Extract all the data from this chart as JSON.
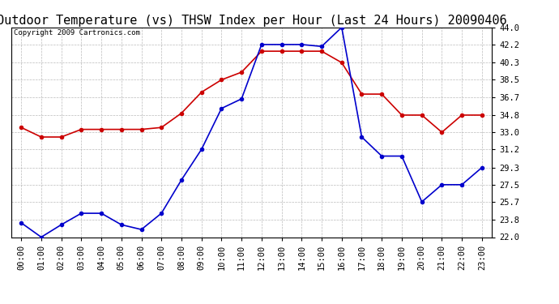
{
  "title": "Outdoor Temperature (vs) THSW Index per Hour (Last 24 Hours) 20090406",
  "copyright": "Copyright 2009 Cartronics.com",
  "hours": [
    "00:00",
    "01:00",
    "02:00",
    "03:00",
    "04:00",
    "05:00",
    "06:00",
    "07:00",
    "08:00",
    "09:00",
    "10:00",
    "11:00",
    "12:00",
    "13:00",
    "14:00",
    "15:00",
    "16:00",
    "17:00",
    "18:00",
    "19:00",
    "20:00",
    "21:00",
    "22:00",
    "23:00"
  ],
  "temp_red": [
    33.5,
    32.5,
    32.5,
    33.3,
    33.3,
    33.3,
    33.3,
    33.5,
    35.0,
    37.2,
    38.5,
    39.3,
    41.5,
    41.5,
    41.5,
    41.5,
    40.3,
    37.0,
    37.0,
    34.8,
    34.8,
    33.0,
    34.8,
    34.8
  ],
  "thsw_blue": [
    23.5,
    22.0,
    23.3,
    24.5,
    24.5,
    23.3,
    22.8,
    24.5,
    28.0,
    31.2,
    35.5,
    36.5,
    42.2,
    42.2,
    42.2,
    42.0,
    44.0,
    32.5,
    30.5,
    30.5,
    25.7,
    27.5,
    27.5,
    29.3
  ],
  "temp_color": "#cc0000",
  "thsw_color": "#0000cc",
  "bg_color": "#ffffff",
  "plot_bg_color": "#ffffff",
  "grid_color": "#aaaaaa",
  "ymin": 22.0,
  "ymax": 44.0,
  "yticks": [
    22.0,
    23.8,
    25.7,
    27.5,
    29.3,
    31.2,
    33.0,
    34.8,
    36.7,
    38.5,
    40.3,
    42.2,
    44.0
  ],
  "title_fontsize": 11,
  "copyright_fontsize": 6.5,
  "tick_fontsize": 7.5,
  "xlabel_fontsize": 7.5,
  "marker": "o",
  "markersize": 3,
  "linewidth": 1.2
}
